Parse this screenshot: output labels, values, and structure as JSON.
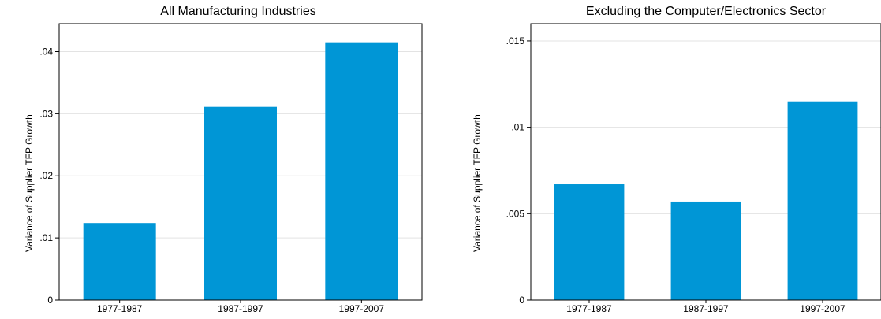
{
  "chart_data": [
    {
      "type": "bar",
      "title": "All Manufacturing Industries",
      "ylabel": "Variance of Supplier TFP Growth",
      "xlabel": "",
      "categories": [
        "1977-1987",
        "1987-1997",
        "1997-2007"
      ],
      "values": [
        0.0124,
        0.0311,
        0.0415
      ],
      "ylim": [
        0,
        0.0445
      ],
      "yticks": [
        0,
        0.01,
        0.02,
        0.03,
        0.04
      ],
      "ytick_labels": [
        "0",
        ".01",
        ".02",
        ".03",
        ".04"
      ],
      "bar_color": "#0096d6",
      "grid": true
    },
    {
      "type": "bar",
      "title": "Excluding the Computer/Electronics Sector",
      "ylabel": "Variance of Supplier TFP Growth",
      "xlabel": "",
      "categories": [
        "1977-1987",
        "1987-1997",
        "1997-2007"
      ],
      "values": [
        0.0067,
        0.0057,
        0.0115
      ],
      "ylim": [
        0,
        0.016
      ],
      "yticks": [
        0,
        0.005,
        0.01,
        0.015
      ],
      "ytick_labels": [
        "0",
        ".005",
        ".01",
        ".015"
      ],
      "bar_color": "#0096d6",
      "grid": true
    }
  ]
}
